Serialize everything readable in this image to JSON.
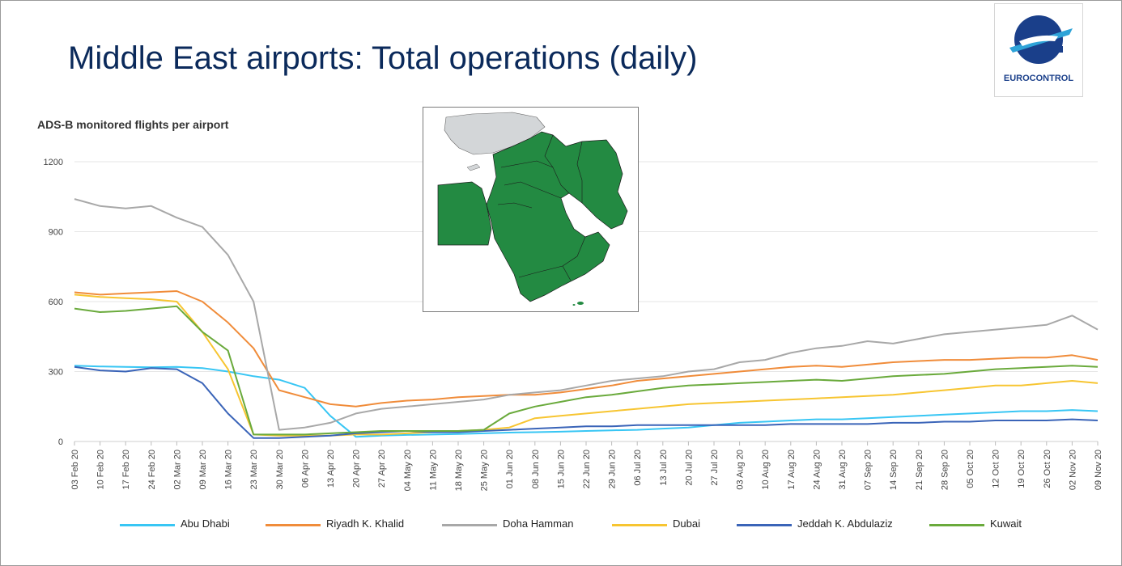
{
  "slide": {
    "title": "Middle East airports: Total operations (daily)"
  },
  "logo": {
    "text": "EUROCONTROL",
    "color": "#1a3f8a",
    "accent": "#2ea3d8"
  },
  "chart_data": {
    "type": "line",
    "title": "ADS-B monitored flights per airport",
    "xlabel": "",
    "ylabel": "",
    "ylim": [
      0,
      1200
    ],
    "yticks": [
      0,
      300,
      600,
      900,
      1200
    ],
    "grid": true,
    "legend_position": "bottom",
    "x_ticks": [
      "03 Feb 20",
      "10 Feb 20",
      "17 Feb 20",
      "24 Feb 20",
      "02 Mar 20",
      "09 Mar 20",
      "16 Mar 20",
      "23 Mar 20",
      "30 Mar 20",
      "06 Apr 20",
      "13 Apr 20",
      "20 Apr 20",
      "27 Apr 20",
      "04 May 20",
      "11 May 20",
      "18 May 20",
      "25 May 20",
      "01 Jun 20",
      "08 Jun 20",
      "15 Jun 20",
      "22 Jun 20",
      "29 Jun 20",
      "06 Jul 20",
      "13 Jul 20",
      "20 Jul 20",
      "27 Jul 20",
      "03 Aug 20",
      "10 Aug 20",
      "17 Aug 20",
      "24 Aug 20",
      "31 Aug 20",
      "07 Sep 20",
      "14 Sep 20",
      "21 Sep 20",
      "28 Sep 20",
      "05 Oct 20",
      "12 Oct 20",
      "19 Oct 20",
      "26 Oct 20",
      "02 Nov 20",
      "09 Nov 20"
    ],
    "series": [
      {
        "name": "Abu Dhabi",
        "color": "#38c6f4",
        "values": [
          325,
          322,
          320,
          318,
          320,
          315,
          300,
          280,
          265,
          230,
          110,
          20,
          25,
          28,
          30,
          32,
          35,
          38,
          40,
          42,
          45,
          48,
          50,
          55,
          60,
          70,
          80,
          85,
          90,
          95,
          95,
          100,
          105,
          110,
          115,
          120,
          125,
          130,
          130,
          135,
          130
        ]
      },
      {
        "name": "Riyadh K. Khalid",
        "color": "#f08c3a",
        "values": [
          640,
          630,
          635,
          640,
          645,
          600,
          510,
          400,
          220,
          190,
          160,
          150,
          165,
          175,
          180,
          190,
          195,
          200,
          200,
          210,
          225,
          240,
          260,
          270,
          280,
          290,
          300,
          310,
          320,
          325,
          320,
          330,
          340,
          345,
          350,
          350,
          355,
          360,
          360,
          370,
          350
        ]
      },
      {
        "name": "Doha Hamman",
        "color": "#a8a8a8",
        "values": [
          1040,
          1010,
          1000,
          1010,
          960,
          920,
          800,
          600,
          50,
          60,
          80,
          120,
          140,
          150,
          160,
          170,
          180,
          200,
          210,
          220,
          240,
          260,
          270,
          280,
          300,
          310,
          340,
          350,
          380,
          400,
          410,
          430,
          420,
          440,
          460,
          470,
          480,
          490,
          500,
          540,
          480
        ]
      },
      {
        "name": "Dubai",
        "color": "#f7c531",
        "values": [
          630,
          620,
          615,
          610,
          600,
          470,
          310,
          30,
          25,
          25,
          25,
          30,
          30,
          35,
          40,
          45,
          50,
          60,
          100,
          110,
          120,
          130,
          140,
          150,
          160,
          165,
          170,
          175,
          180,
          185,
          190,
          195,
          200,
          210,
          220,
          230,
          240,
          240,
          250,
          260,
          250
        ]
      },
      {
        "name": "Jeddah K. Abdulaziz",
        "color": "#3a64b8",
        "values": [
          320,
          305,
          300,
          315,
          310,
          250,
          120,
          15,
          15,
          20,
          25,
          35,
          40,
          45,
          40,
          40,
          45,
          50,
          55,
          60,
          65,
          65,
          70,
          70,
          70,
          70,
          70,
          70,
          75,
          75,
          75,
          75,
          80,
          80,
          85,
          85,
          90,
          90,
          90,
          95,
          90
        ]
      },
      {
        "name": "Kuwait",
        "color": "#6aaa3c",
        "values": [
          570,
          555,
          560,
          570,
          580,
          470,
          390,
          30,
          30,
          30,
          35,
          40,
          45,
          45,
          45,
          45,
          50,
          120,
          150,
          170,
          190,
          200,
          215,
          230,
          240,
          245,
          250,
          255,
          260,
          265,
          260,
          270,
          280,
          285,
          290,
          300,
          310,
          315,
          320,
          325,
          320
        ]
      }
    ]
  },
  "map": {
    "land_color": "#238a42",
    "other_color": "#d3d6d8",
    "outline_color": "#1b1b1b"
  }
}
